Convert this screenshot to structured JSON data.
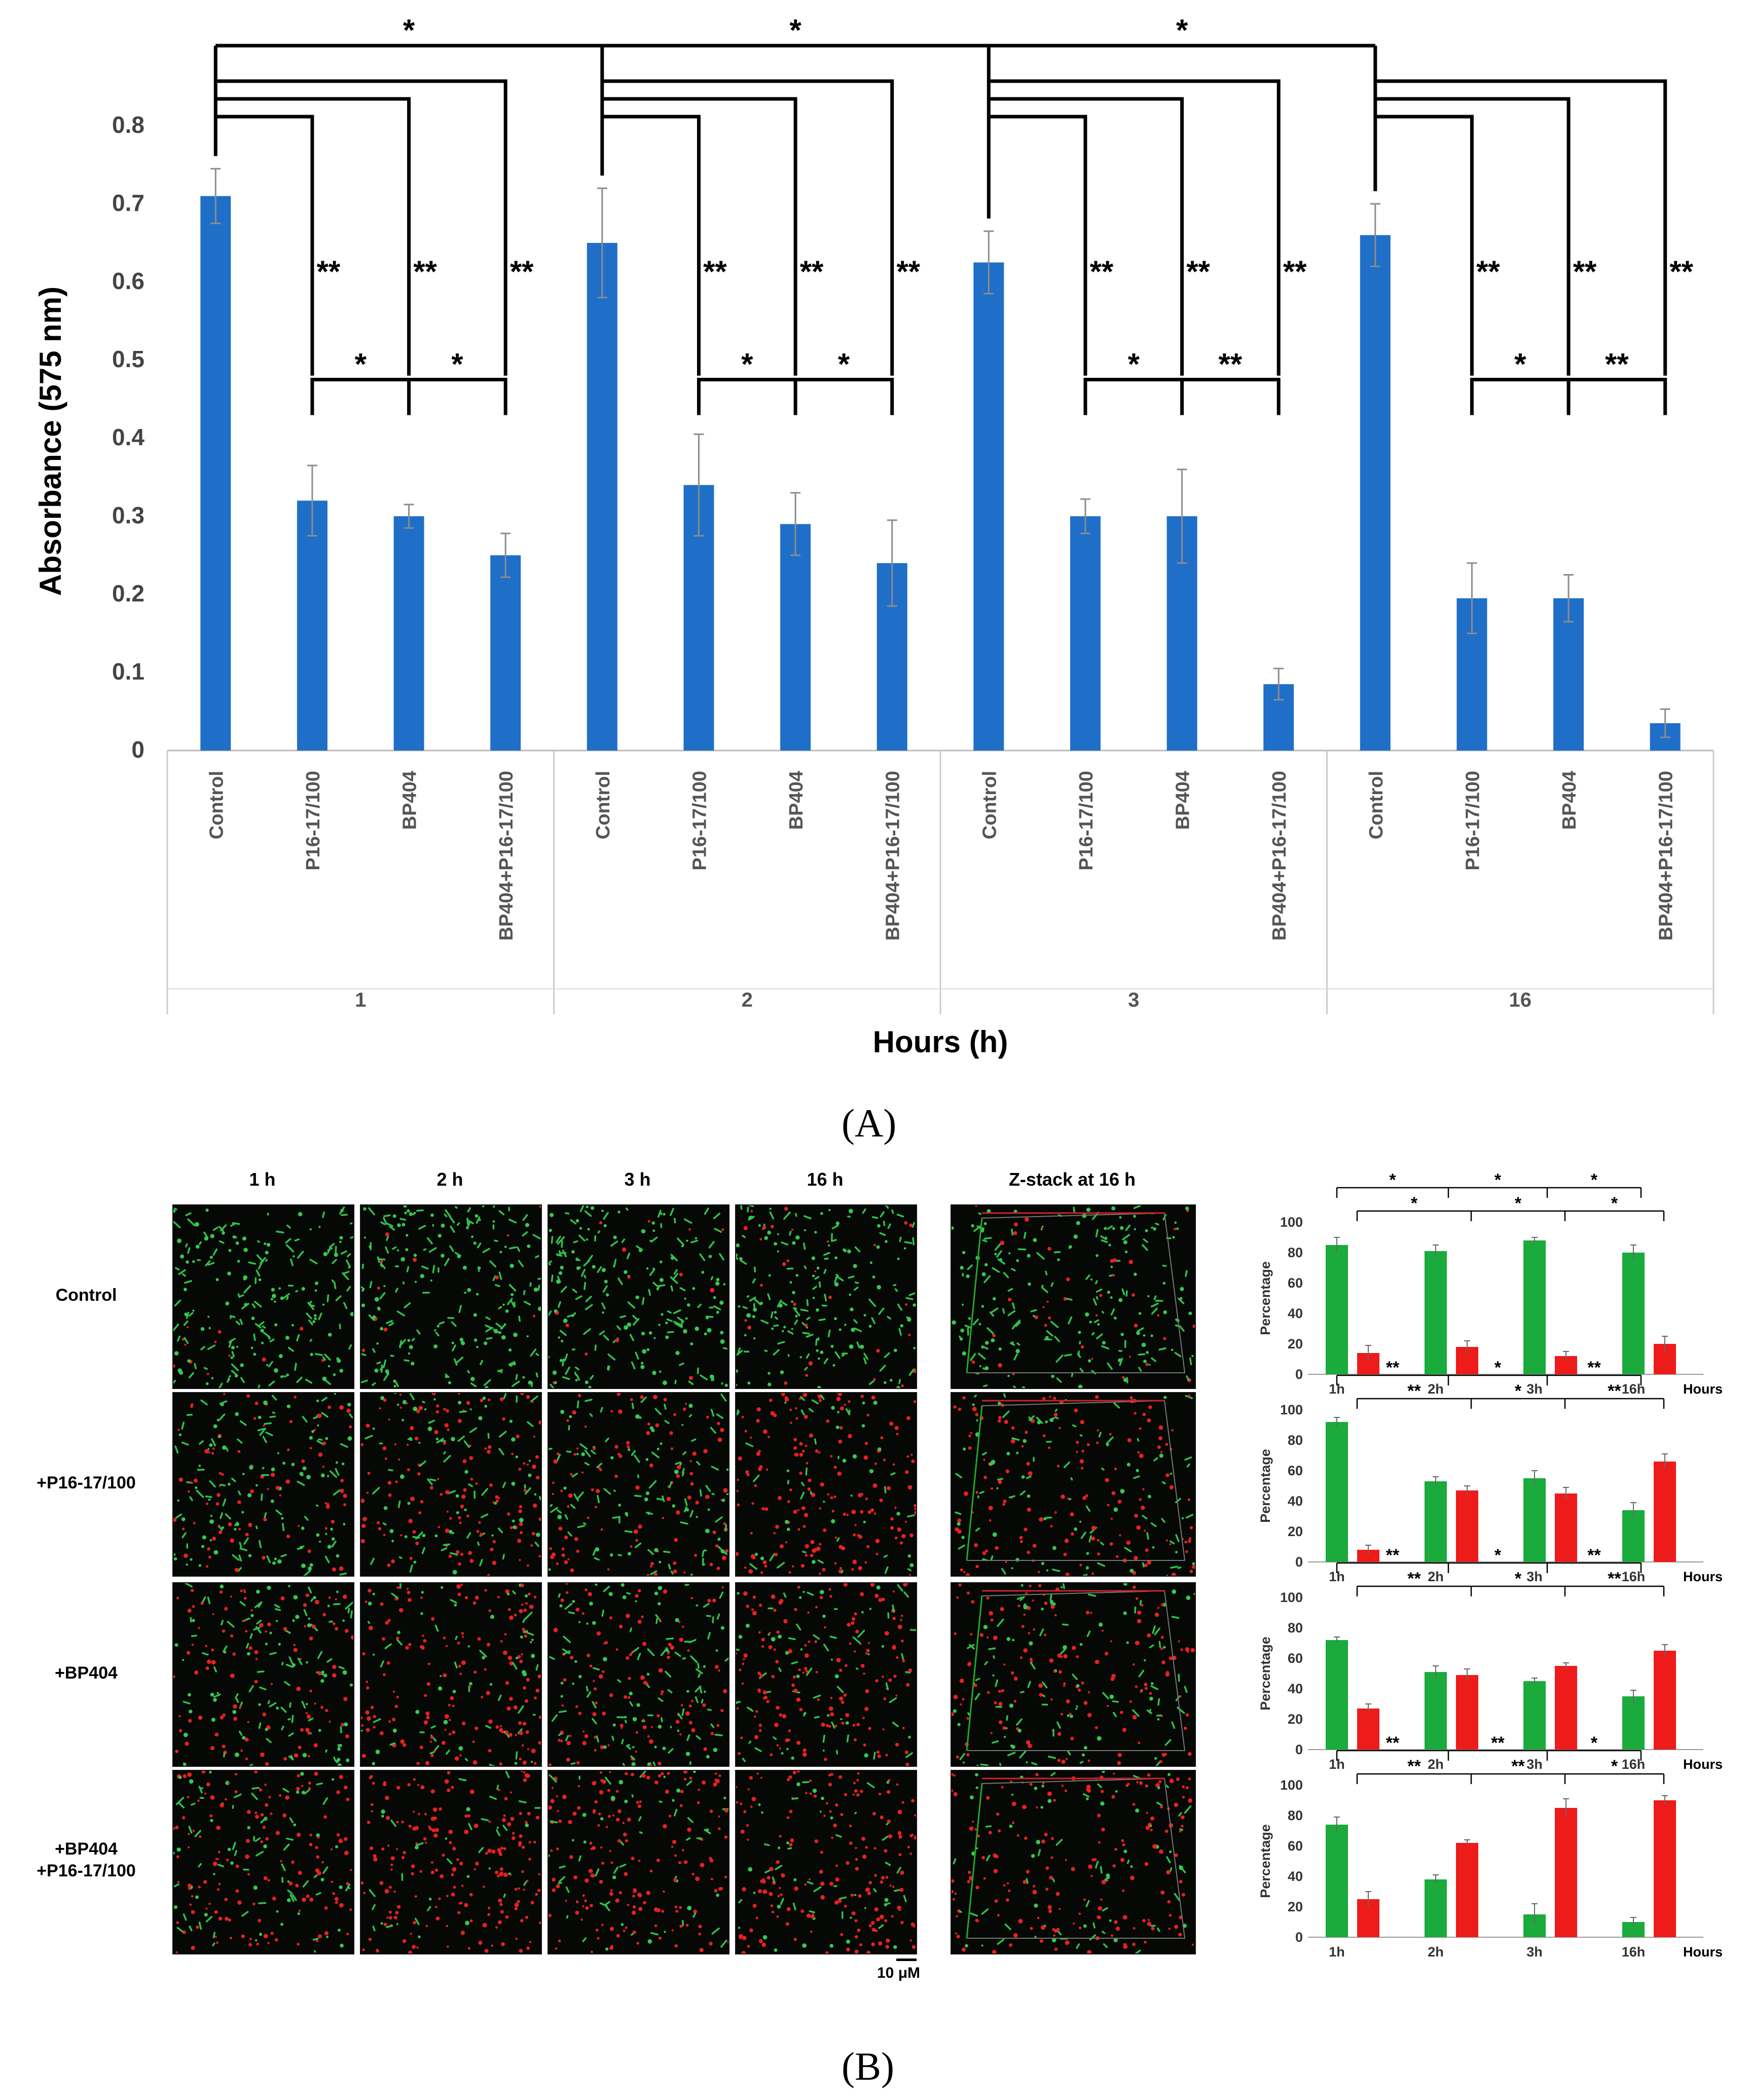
{
  "panel_labels": {
    "a": "(A)",
    "b": "(B)"
  },
  "colors": {
    "blue_bar": "#1f6fc8",
    "green": "#1aab3c",
    "red": "#ee1b1b",
    "bracket": "#000000",
    "error": "#8c8c8c"
  },
  "chart_data": [
    {
      "id": "A",
      "type": "bar",
      "ylabel": "Absorbance (575 nm)",
      "xlabel": "Hours (h)",
      "ylim": [
        0,
        0.8
      ],
      "yticks": [
        "0",
        "0.1",
        "0.2",
        "0.3",
        "0.4",
        "0.5",
        "0.6",
        "0.7",
        "0.8"
      ],
      "groups": [
        "1",
        "2",
        "3",
        "16"
      ],
      "categories": [
        "Control",
        "P16-17/100",
        "BP404",
        "BP404+P16-17/100"
      ],
      "values": [
        [
          0.71,
          0.32,
          0.3,
          0.25
        ],
        [
          0.65,
          0.34,
          0.29,
          0.24
        ],
        [
          0.625,
          0.3,
          0.3,
          0.085
        ],
        [
          0.66,
          0.195,
          0.195,
          0.035
        ]
      ],
      "errors": [
        [
          0.035,
          0.045,
          0.015,
          0.028
        ],
        [
          0.07,
          0.065,
          0.04,
          0.055
        ],
        [
          0.04,
          0.022,
          0.06,
          0.02
        ],
        [
          0.04,
          0.045,
          0.03,
          0.018
        ]
      ],
      "sig": {
        "top": "*",
        "control_vs": "**",
        "between": [
          [
            "*",
            "*"
          ],
          [
            "*",
            "*"
          ],
          [
            "*",
            "**"
          ],
          [
            "*",
            "**"
          ]
        ]
      }
    },
    {
      "id": "B-control",
      "type": "bar",
      "ylabel": "Percentage",
      "xlabel_end": "Hours",
      "ylim": [
        0,
        100
      ],
      "yticks": [
        "0",
        "20",
        "40",
        "60",
        "80",
        "100"
      ],
      "categories": [
        "1h",
        "2h",
        "3h",
        "16h"
      ],
      "series": [
        {
          "values": [
            85,
            81,
            88,
            80
          ],
          "errors": [
            5,
            4,
            2,
            5
          ]
        },
        {
          "values": [
            14,
            18,
            12,
            20
          ],
          "errors": [
            5,
            4,
            3,
            5
          ]
        }
      ],
      "sig_top": [
        "*",
        "*",
        "*"
      ],
      "sig_low": [
        "*",
        "*",
        "*"
      ]
    },
    {
      "id": "B-p16",
      "type": "bar",
      "ylabel": "Percentage",
      "xlabel_end": "Hours",
      "ylim": [
        0,
        100
      ],
      "yticks": [
        "0",
        "20",
        "40",
        "60",
        "80",
        "100"
      ],
      "categories": [
        "1h",
        "2h",
        "3h",
        "16h"
      ],
      "series": [
        {
          "values": [
            92,
            53,
            55,
            34
          ],
          "errors": [
            3,
            3,
            5,
            5
          ]
        },
        {
          "values": [
            8,
            47,
            45,
            66
          ],
          "errors": [
            3,
            3,
            4,
            5
          ]
        }
      ],
      "sig_top": [
        "**",
        "*",
        "**"
      ],
      "sig_low": [
        "**",
        "*",
        "**"
      ]
    },
    {
      "id": "B-bp404",
      "type": "bar",
      "ylabel": "Percentage",
      "xlabel_end": "Hours",
      "ylim": [
        0,
        100
      ],
      "yticks": [
        "0",
        "20",
        "40",
        "60",
        "80",
        "100"
      ],
      "categories": [
        "1h",
        "2h",
        "3h",
        "16h"
      ],
      "series": [
        {
          "values": [
            72,
            51,
            45,
            35
          ],
          "errors": [
            2,
            4,
            2,
            4
          ]
        },
        {
          "values": [
            27,
            49,
            55,
            65
          ],
          "errors": [
            3,
            4,
            2,
            4
          ]
        }
      ],
      "sig_top": [
        "**",
        "*",
        "**"
      ],
      "sig_low": [
        "**",
        "*",
        "**"
      ]
    },
    {
      "id": "B-combo",
      "type": "bar",
      "ylabel": "Percentage",
      "xlabel_end": "Hours",
      "ylim": [
        0,
        100
      ],
      "yticks": [
        "0",
        "20",
        "40",
        "60",
        "80",
        "100"
      ],
      "categories": [
        "1h",
        "2h",
        "3h",
        "16h"
      ],
      "series": [
        {
          "values": [
            74,
            38,
            15,
            10
          ],
          "errors": [
            5,
            3,
            7,
            3
          ]
        },
        {
          "values": [
            25,
            62,
            85,
            90
          ],
          "errors": [
            5,
            2,
            6,
            3
          ]
        }
      ],
      "sig_top": [
        "**",
        "**",
        "*"
      ],
      "sig_low": [
        "**",
        "**",
        "*"
      ]
    }
  ],
  "micrographs": {
    "columns": [
      "1 h",
      "2 h",
      "3 h",
      "16 h"
    ],
    "zstack_title": "Z-stack at 16 h",
    "rows": [
      "Control",
      "+P16-17/100",
      "+BP404",
      "+BP404\n+P16-17/100"
    ],
    "scale_bar": "10 μM",
    "green_fraction": [
      [
        0.96,
        0.97,
        0.95,
        0.92
      ],
      [
        0.7,
        0.45,
        0.55,
        0.25
      ],
      [
        0.55,
        0.3,
        0.5,
        0.35
      ],
      [
        0.3,
        0.15,
        0.25,
        0.25
      ]
    ],
    "zstack_green_fraction": [
      0.88,
      0.4,
      0.45,
      0.35
    ]
  }
}
